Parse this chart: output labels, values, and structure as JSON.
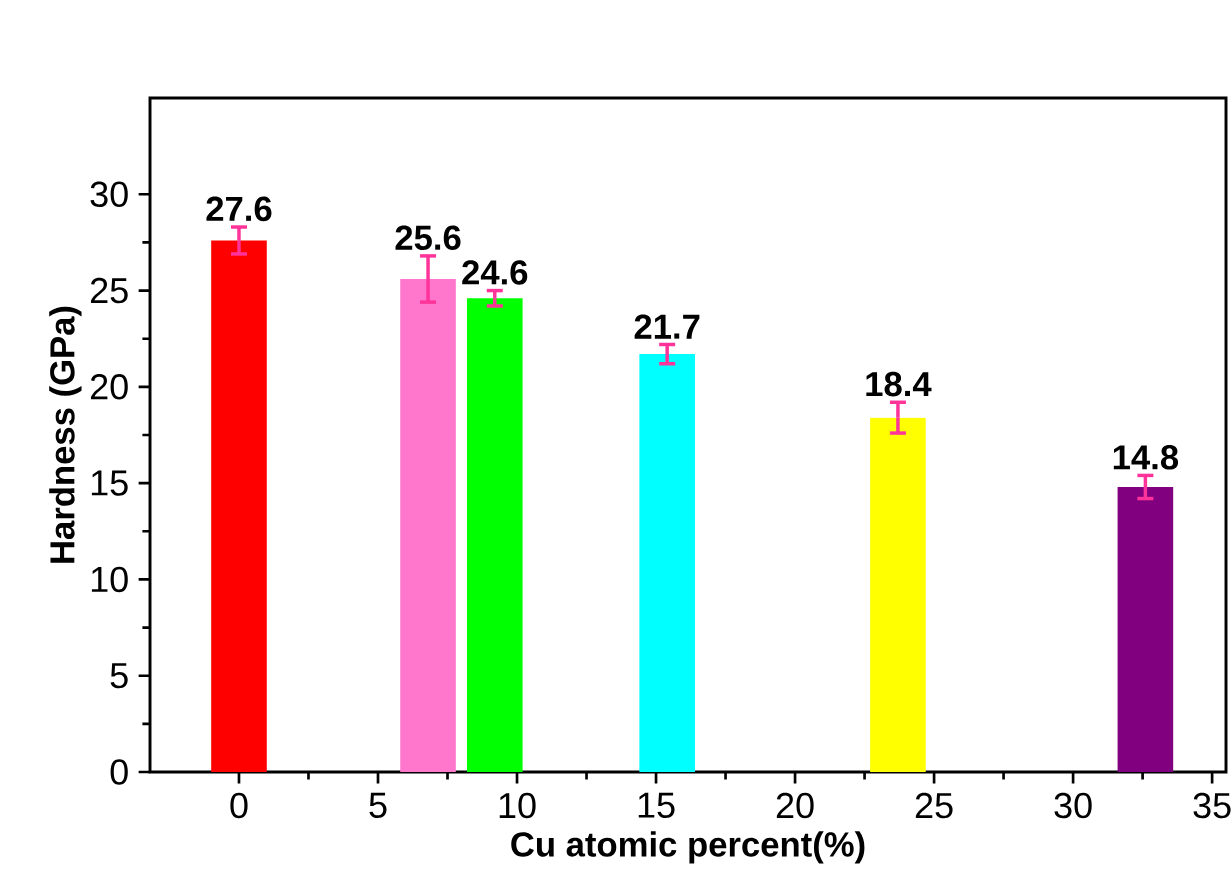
{
  "chart_data": {
    "type": "bar",
    "xlabel": "Cu atomic percent(%)",
    "ylabel": "Hardness (GPa)",
    "x": [
      0,
      6.8,
      9.2,
      15.4,
      23.7,
      32.6
    ],
    "values": [
      27.6,
      25.6,
      24.6,
      21.7,
      18.4,
      14.8
    ],
    "errors": [
      0.7,
      1.2,
      0.4,
      0.5,
      0.8,
      0.6
    ],
    "colors": [
      "#ff0000",
      "#ff77cc",
      "#00ff00",
      "#00ffff",
      "#ffff00",
      "#800080"
    ],
    "data_labels": true,
    "xlim": [
      -3.2,
      35.5
    ],
    "ylim": [
      0,
      35
    ],
    "xticks": [
      0,
      5,
      10,
      15,
      20,
      25,
      30,
      35
    ],
    "yticks": [
      0,
      5,
      10,
      15,
      20,
      25,
      30
    ],
    "grid": false
  }
}
